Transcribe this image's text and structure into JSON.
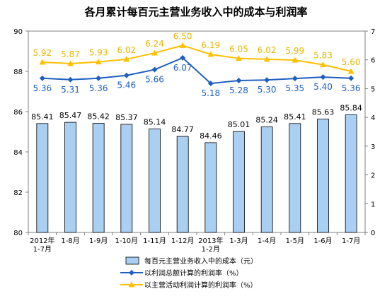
{
  "chart_data": {
    "type": "bar+line",
    "title": "各月累计每百元主营业务收入中的成本与利润率",
    "categories": [
      [
        "2012年",
        "1-7月"
      ],
      [
        "1-8月"
      ],
      [
        "1-9月"
      ],
      [
        "1-10月"
      ],
      [
        "1-11月"
      ],
      [
        "1-12月"
      ],
      [
        "2013年",
        "1-2月"
      ],
      [
        "1-3月"
      ],
      [
        "1-4月"
      ],
      [
        "1-5月"
      ],
      [
        "1-6月"
      ],
      [
        "1-7月"
      ]
    ],
    "left_axis": {
      "ylim": [
        80,
        90
      ],
      "ticks": [
        "80",
        "82",
        "84",
        "86",
        "88",
        "90"
      ]
    },
    "right_axis": {
      "ylim": [
        0,
        7
      ],
      "ticks": [
        "0",
        "1",
        "2",
        "3",
        "4",
        "5",
        "6",
        "7"
      ]
    },
    "series": [
      {
        "name": "每百元主营业务收入中的成本（元）",
        "kind": "bar",
        "axis": "left",
        "color": "#a9cff3",
        "values": [
          85.41,
          85.47,
          85.42,
          85.37,
          85.14,
          84.77,
          84.46,
          85.01,
          85.24,
          85.41,
          85.63,
          85.84
        ],
        "labels": [
          "85.41",
          "85.47",
          "85.42",
          "85.37",
          "85.14",
          "84.77",
          "84.46",
          "85.01",
          "85.24",
          "85.41",
          "85.63",
          "85.84"
        ]
      },
      {
        "name": "以利润总额计算的利润率（%）",
        "kind": "line",
        "axis": "right",
        "color": "#1f5fbf",
        "values": [
          5.36,
          5.31,
          5.36,
          5.46,
          5.66,
          6.07,
          5.18,
          5.28,
          5.3,
          5.35,
          5.4,
          5.36
        ],
        "labels": [
          "5.36",
          "5.31",
          "5.36",
          "5.46",
          "5.66",
          "6.07",
          "5.18",
          "5.28",
          "5.30",
          "5.35",
          "5.40",
          "5.36"
        ]
      },
      {
        "name": "以主营活动利润计算的利润率（%）",
        "kind": "line",
        "axis": "right",
        "color": "#ffc000",
        "values": [
          5.92,
          5.87,
          5.93,
          6.02,
          6.24,
          6.5,
          6.19,
          6.05,
          6.02,
          5.99,
          5.83,
          5.6
        ],
        "labels": [
          "5.92",
          "5.87",
          "5.93",
          "6.02",
          "6.24",
          "6.50",
          "6.19",
          "6.05",
          "6.02",
          "5.99",
          "5.83",
          "5.60"
        ]
      }
    ],
    "grid": false,
    "legend_position": "bottom"
  }
}
